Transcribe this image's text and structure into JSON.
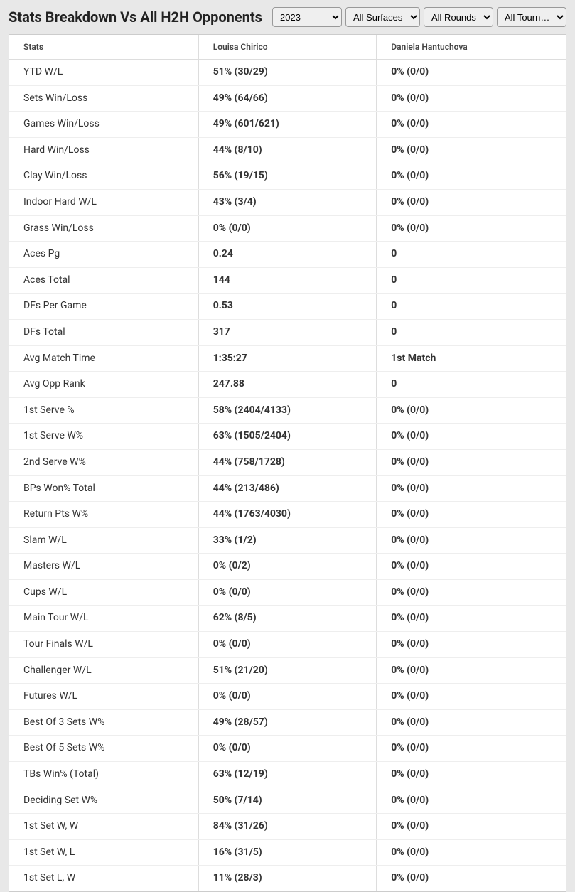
{
  "header": {
    "title": "Stats Breakdown Vs All H2H Opponents"
  },
  "filters": {
    "year": {
      "selected": "2023"
    },
    "surface": {
      "selected": "All Surfaces"
    },
    "round": {
      "selected": "All Rounds"
    },
    "tournament": {
      "selected": "All Tourn…"
    }
  },
  "table": {
    "columns": {
      "stat": "Stats",
      "player1": "Louisa Chirico",
      "player2": "Daniela Hantuchova"
    },
    "rows": [
      {
        "stat": "YTD W/L",
        "p1": "51% (30/29)",
        "p2": "0% (0/0)"
      },
      {
        "stat": "Sets Win/Loss",
        "p1": "49% (64/66)",
        "p2": "0% (0/0)"
      },
      {
        "stat": "Games Win/Loss",
        "p1": "49% (601/621)",
        "p2": "0% (0/0)"
      },
      {
        "stat": "Hard Win/Loss",
        "p1": "44% (8/10)",
        "p2": "0% (0/0)"
      },
      {
        "stat": "Clay Win/Loss",
        "p1": "56% (19/15)",
        "p2": "0% (0/0)"
      },
      {
        "stat": "Indoor Hard W/L",
        "p1": "43% (3/4)",
        "p2": "0% (0/0)"
      },
      {
        "stat": "Grass Win/Loss",
        "p1": "0% (0/0)",
        "p2": "0% (0/0)"
      },
      {
        "stat": "Aces Pg",
        "p1": "0.24",
        "p2": "0"
      },
      {
        "stat": "Aces Total",
        "p1": "144",
        "p2": "0"
      },
      {
        "stat": "DFs Per Game",
        "p1": "0.53",
        "p2": "0"
      },
      {
        "stat": "DFs Total",
        "p1": "317",
        "p2": "0"
      },
      {
        "stat": "Avg Match Time",
        "p1": "1:35:27",
        "p2": "1st Match"
      },
      {
        "stat": "Avg Opp Rank",
        "p1": "247.88",
        "p2": "0"
      },
      {
        "stat": "1st Serve %",
        "p1": "58% (2404/4133)",
        "p2": "0% (0/0)"
      },
      {
        "stat": "1st Serve W%",
        "p1": "63% (1505/2404)",
        "p2": "0% (0/0)"
      },
      {
        "stat": "2nd Serve W%",
        "p1": "44% (758/1728)",
        "p2": "0% (0/0)"
      },
      {
        "stat": "BPs Won% Total",
        "p1": "44% (213/486)",
        "p2": "0% (0/0)"
      },
      {
        "stat": "Return Pts W%",
        "p1": "44% (1763/4030)",
        "p2": "0% (0/0)"
      },
      {
        "stat": "Slam W/L",
        "p1": "33% (1/2)",
        "p2": "0% (0/0)"
      },
      {
        "stat": "Masters W/L",
        "p1": "0% (0/2)",
        "p2": "0% (0/0)"
      },
      {
        "stat": "Cups W/L",
        "p1": "0% (0/0)",
        "p2": "0% (0/0)"
      },
      {
        "stat": "Main Tour W/L",
        "p1": "62% (8/5)",
        "p2": "0% (0/0)"
      },
      {
        "stat": "Tour Finals W/L",
        "p1": "0% (0/0)",
        "p2": "0% (0/0)"
      },
      {
        "stat": "Challenger W/L",
        "p1": "51% (21/20)",
        "p2": "0% (0/0)"
      },
      {
        "stat": "Futures W/L",
        "p1": "0% (0/0)",
        "p2": "0% (0/0)"
      },
      {
        "stat": "Best Of 3 Sets W%",
        "p1": "49% (28/57)",
        "p2": "0% (0/0)"
      },
      {
        "stat": "Best Of 5 Sets W%",
        "p1": "0% (0/0)",
        "p2": "0% (0/0)"
      },
      {
        "stat": "TBs Win% (Total)",
        "p1": "63% (12/19)",
        "p2": "0% (0/0)"
      },
      {
        "stat": "Deciding Set W%",
        "p1": "50% (7/14)",
        "p2": "0% (0/0)"
      },
      {
        "stat": "1st Set W, W",
        "p1": "84% (31/26)",
        "p2": "0% (0/0)"
      },
      {
        "stat": "1st Set W, L",
        "p1": "16% (31/5)",
        "p2": "0% (0/0)"
      },
      {
        "stat": "1st Set L, W",
        "p1": "11% (28/3)",
        "p2": "0% (0/0)"
      }
    ]
  }
}
